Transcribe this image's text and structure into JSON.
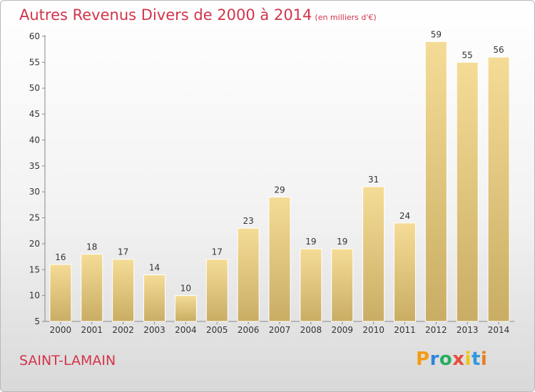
{
  "title": "Autres Revenus Divers de 2000 à 2014",
  "subtitle": "(en milliers d'€)",
  "commune": "SAINT-LAMAIN",
  "logo": {
    "letters": [
      "P",
      "r",
      "o",
      "x",
      "i",
      "t",
      "i"
    ],
    "colors": [
      "#f39c12",
      "#2e86de",
      "#27ae60",
      "#e74c3c",
      "#f1c40f",
      "#3498db",
      "#e67e22"
    ]
  },
  "chart_data": {
    "type": "bar",
    "categories": [
      "2000",
      "2001",
      "2002",
      "2003",
      "2004",
      "2005",
      "2006",
      "2007",
      "2008",
      "2009",
      "2010",
      "2011",
      "2012",
      "2013",
      "2014"
    ],
    "values": [
      16,
      18,
      17,
      14,
      10,
      17,
      23,
      29,
      19,
      19,
      31,
      24,
      59,
      55,
      56
    ],
    "title": "Autres Revenus Divers de 2000 à 2014",
    "ylim": [
      5,
      60
    ],
    "yticks": [
      5,
      10,
      15,
      20,
      25,
      30,
      35,
      40,
      45,
      50,
      55,
      60
    ],
    "grid": false,
    "bar_color_top": "#f5dc96",
    "bar_color_bottom": "#c9ad64",
    "data_labels": true
  }
}
